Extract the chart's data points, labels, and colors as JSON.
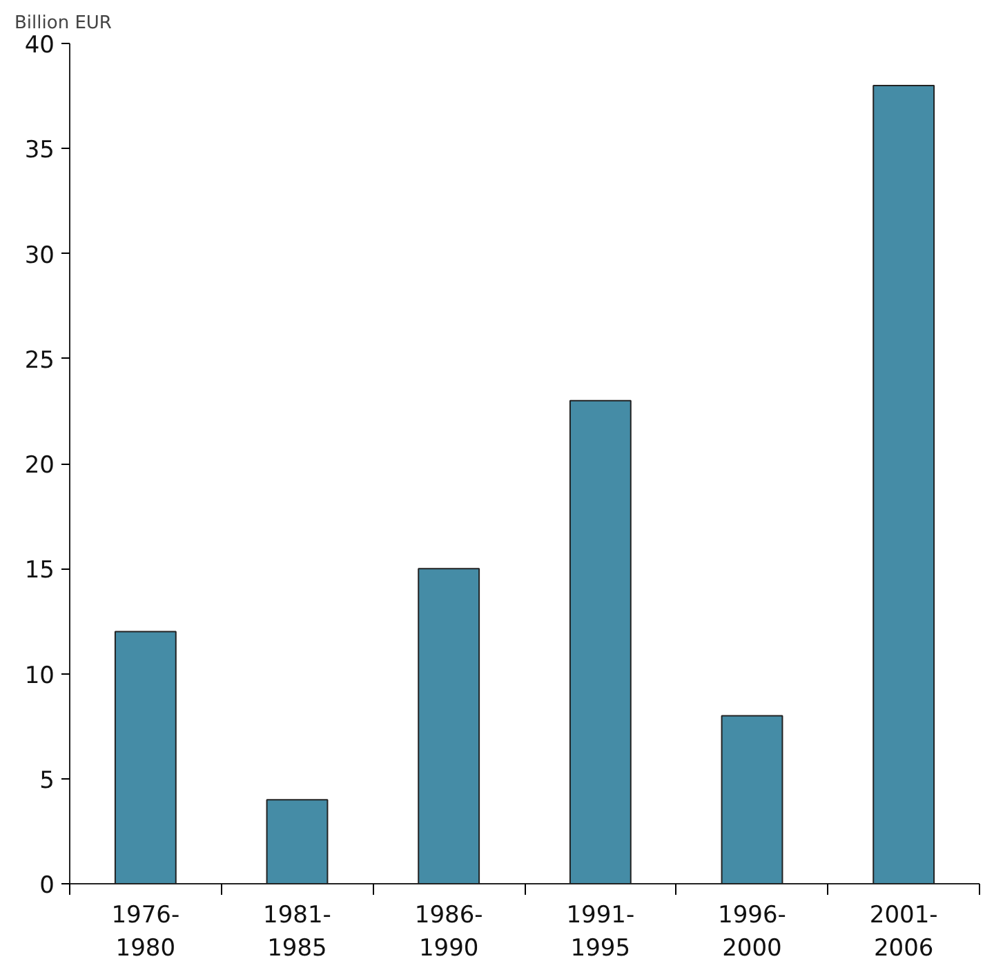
{
  "chart_data": {
    "type": "bar",
    "ylabel": "Billion EUR",
    "categories": [
      "1976-\n1980",
      "1981-\n1985",
      "1986-\n1990",
      "1991-\n1995",
      "1996-\n2000",
      "2001-\n2006"
    ],
    "values": [
      12,
      4,
      15,
      23,
      8,
      38
    ],
    "color": "#458ca6",
    "ylim": [
      0,
      40
    ],
    "yticks": [
      0,
      5,
      10,
      15,
      20,
      25,
      30,
      35,
      40
    ],
    "grid": false
  }
}
